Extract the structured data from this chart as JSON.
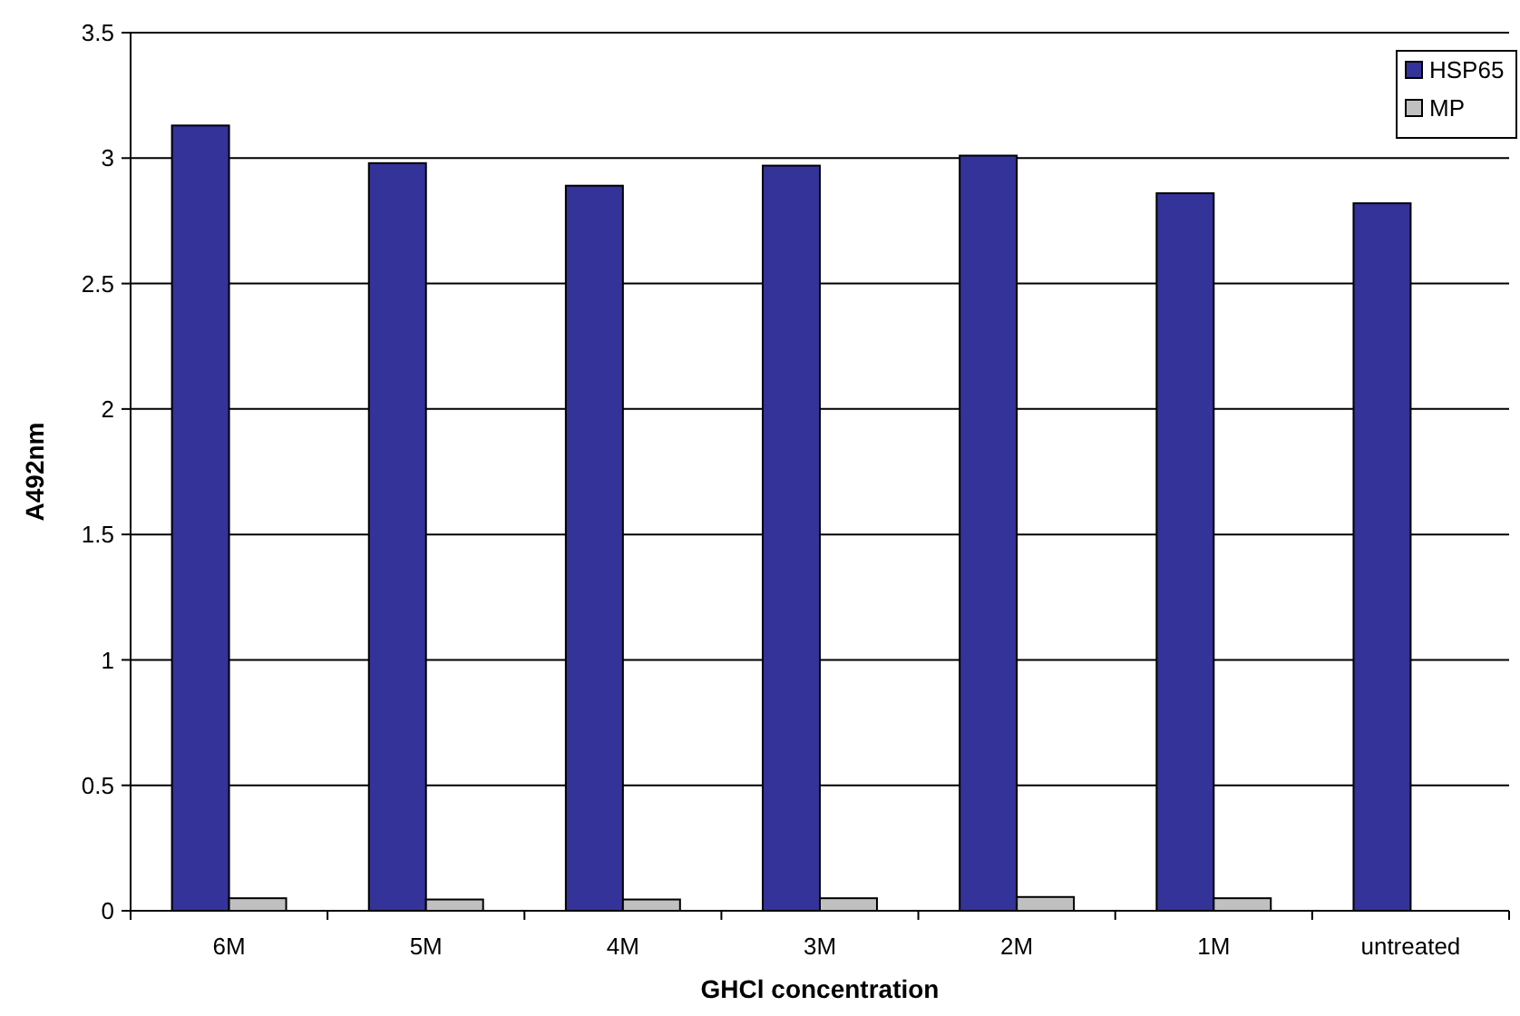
{
  "chart_data": {
    "type": "bar",
    "xlabel": "GHCl concentration",
    "ylabel": "A492nm",
    "categories": [
      "6M",
      "5M",
      "4M",
      "3M",
      "2M",
      "1M",
      "untreated"
    ],
    "series": [
      {
        "name": "HSP65",
        "color": "#333399",
        "values": [
          3.13,
          2.98,
          2.89,
          2.97,
          3.01,
          2.86,
          2.82
        ]
      },
      {
        "name": "MP",
        "color": "#c0c0c0",
        "values": [
          0.05,
          0.045,
          0.045,
          0.05,
          0.055,
          0.05,
          null
        ]
      }
    ],
    "ylim": [
      0,
      3.5
    ],
    "yticks": [
      0,
      0.5,
      1,
      1.5,
      2,
      2.5,
      3,
      3.5
    ],
    "grid": "y",
    "legend": "top right"
  }
}
